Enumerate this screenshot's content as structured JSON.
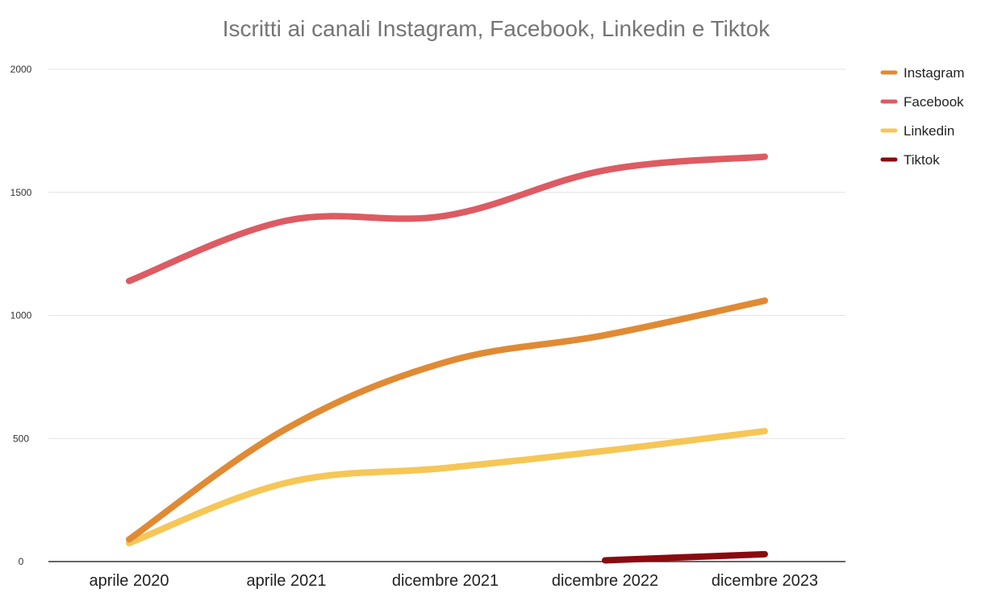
{
  "chart_data": {
    "type": "line",
    "title": "Iscritti ai canali Instagram, Facebook, Linkedin e Tiktok",
    "xlabel": "",
    "ylabel": "",
    "categories": [
      "aprile 2020",
      "aprile 2021",
      "dicembre 2021",
      "dicembre 2022",
      "dicembre 2023"
    ],
    "ylim": [
      0,
      2000
    ],
    "yticks": [
      0,
      500,
      1000,
      1500,
      2000
    ],
    "grid": true,
    "legend_position": "right",
    "series": [
      {
        "name": "Instagram",
        "color": "#e08a34",
        "values": [
          90,
          540,
          810,
          920,
          1060
        ]
      },
      {
        "name": "Facebook",
        "color": "#dd5b62",
        "values": [
          1140,
          1385,
          1405,
          1590,
          1645
        ]
      },
      {
        "name": "Linkedin",
        "color": "#f6c656",
        "values": [
          75,
          320,
          380,
          450,
          530
        ]
      },
      {
        "name": "Tiktok",
        "color": "#8a0a10",
        "values": [
          null,
          null,
          null,
          5,
          30
        ]
      }
    ]
  }
}
